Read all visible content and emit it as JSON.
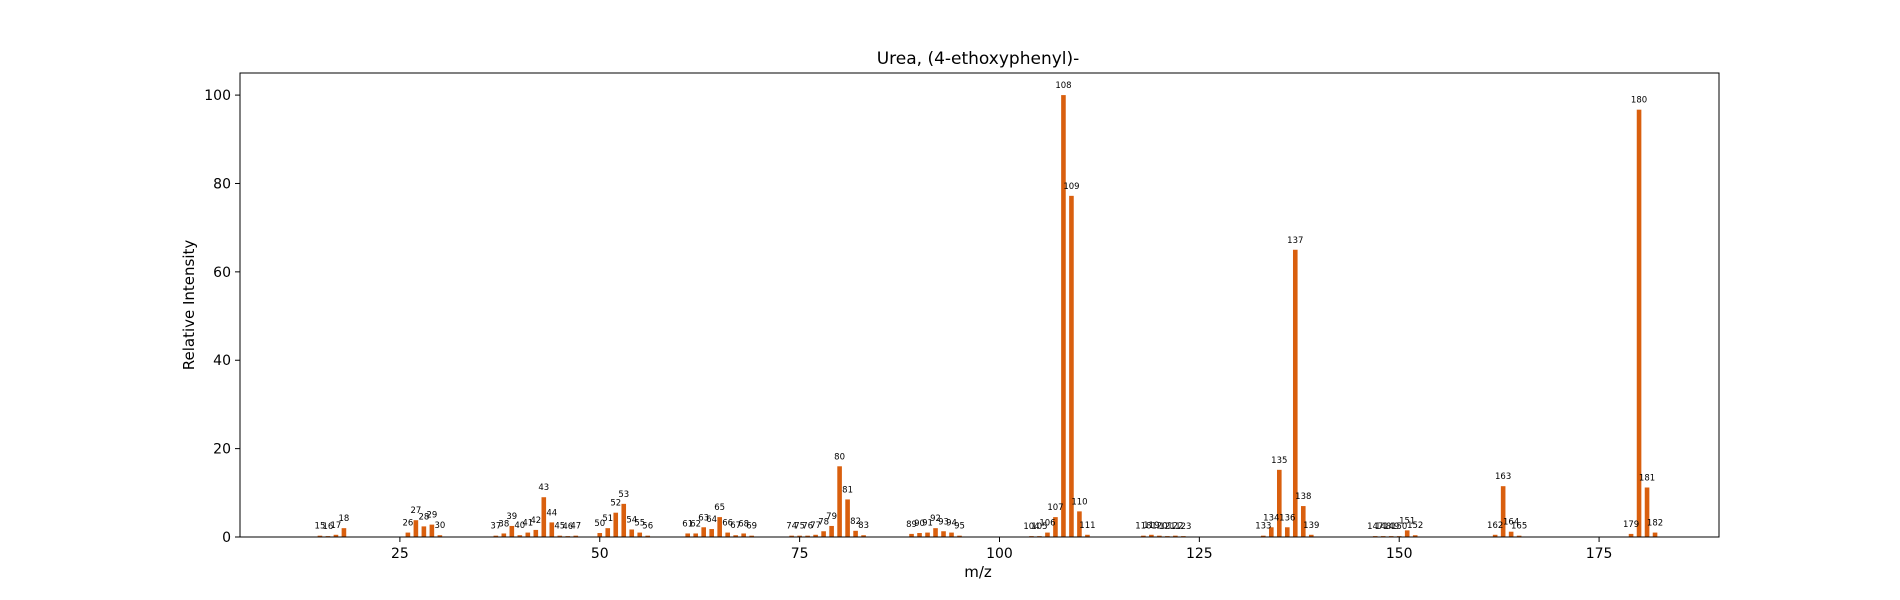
{
  "chart_data": {
    "type": "bar",
    "title": "Urea, (4-ethoxyphenyl)-",
    "xlabel": "m/z",
    "ylabel": "Relative Intensity",
    "xlim": [
      5,
      190
    ],
    "ylim": [
      0,
      105
    ],
    "xticks": [
      25,
      50,
      75,
      100,
      125,
      150,
      175
    ],
    "yticks": [
      0,
      20,
      40,
      60,
      80,
      100
    ],
    "bar_color": "#d95f0e",
    "grid": false,
    "legend": "none",
    "peaks": [
      {
        "mz": 15,
        "intensity": 0.3
      },
      {
        "mz": 16,
        "intensity": 0.2
      },
      {
        "mz": 17,
        "intensity": 0.5
      },
      {
        "mz": 18,
        "intensity": 2.0
      },
      {
        "mz": 26,
        "intensity": 1.0
      },
      {
        "mz": 27,
        "intensity": 3.8
      },
      {
        "mz": 28,
        "intensity": 2.4
      },
      {
        "mz": 29,
        "intensity": 2.8
      },
      {
        "mz": 30,
        "intensity": 0.4
      },
      {
        "mz": 37,
        "intensity": 0.3
      },
      {
        "mz": 38,
        "intensity": 0.8
      },
      {
        "mz": 39,
        "intensity": 2.5
      },
      {
        "mz": 40,
        "intensity": 0.4
      },
      {
        "mz": 41,
        "intensity": 1.0
      },
      {
        "mz": 42,
        "intensity": 1.6
      },
      {
        "mz": 43,
        "intensity": 9.0
      },
      {
        "mz": 44,
        "intensity": 3.3
      },
      {
        "mz": 45,
        "intensity": 0.3
      },
      {
        "mz": 46,
        "intensity": 0.2
      },
      {
        "mz": 47,
        "intensity": 0.3
      },
      {
        "mz": 50,
        "intensity": 0.9
      },
      {
        "mz": 51,
        "intensity": 2.0
      },
      {
        "mz": 52,
        "intensity": 5.5
      },
      {
        "mz": 53,
        "intensity": 7.5
      },
      {
        "mz": 54,
        "intensity": 1.7
      },
      {
        "mz": 55,
        "intensity": 1.0
      },
      {
        "mz": 56,
        "intensity": 0.3
      },
      {
        "mz": 61,
        "intensity": 0.8
      },
      {
        "mz": 62,
        "intensity": 0.8
      },
      {
        "mz": 63,
        "intensity": 2.2
      },
      {
        "mz": 64,
        "intensity": 1.8
      },
      {
        "mz": 65,
        "intensity": 4.5
      },
      {
        "mz": 66,
        "intensity": 1.0
      },
      {
        "mz": 67,
        "intensity": 0.4
      },
      {
        "mz": 68,
        "intensity": 0.8
      },
      {
        "mz": 69,
        "intensity": 0.3
      },
      {
        "mz": 74,
        "intensity": 0.3
      },
      {
        "mz": 75,
        "intensity": 0.3
      },
      {
        "mz": 76,
        "intensity": 0.3
      },
      {
        "mz": 77,
        "intensity": 0.5
      },
      {
        "mz": 78,
        "intensity": 1.3
      },
      {
        "mz": 79,
        "intensity": 2.5
      },
      {
        "mz": 80,
        "intensity": 16.0
      },
      {
        "mz": 81,
        "intensity": 8.5
      },
      {
        "mz": 82,
        "intensity": 1.4
      },
      {
        "mz": 83,
        "intensity": 0.4
      },
      {
        "mz": 89,
        "intensity": 0.7
      },
      {
        "mz": 90,
        "intensity": 0.9
      },
      {
        "mz": 91,
        "intensity": 1.0
      },
      {
        "mz": 92,
        "intensity": 2.0
      },
      {
        "mz": 93,
        "intensity": 1.3
      },
      {
        "mz": 94,
        "intensity": 1.0
      },
      {
        "mz": 95,
        "intensity": 0.3
      },
      {
        "mz": 104,
        "intensity": 0.2
      },
      {
        "mz": 105,
        "intensity": 0.2
      },
      {
        "mz": 106,
        "intensity": 1.0
      },
      {
        "mz": 107,
        "intensity": 4.5
      },
      {
        "mz": 108,
        "intensity": 100.0
      },
      {
        "mz": 109,
        "intensity": 77.2
      },
      {
        "mz": 110,
        "intensity": 5.8
      },
      {
        "mz": 111,
        "intensity": 0.5
      },
      {
        "mz": 118,
        "intensity": 0.3
      },
      {
        "mz": 119,
        "intensity": 0.5
      },
      {
        "mz": 120,
        "intensity": 0.3
      },
      {
        "mz": 121,
        "intensity": 0.2
      },
      {
        "mz": 122,
        "intensity": 0.3
      },
      {
        "mz": 123,
        "intensity": 0.2
      },
      {
        "mz": 133,
        "intensity": 0.3
      },
      {
        "mz": 134,
        "intensity": 2.2
      },
      {
        "mz": 135,
        "intensity": 15.2
      },
      {
        "mz": 136,
        "intensity": 2.2
      },
      {
        "mz": 137,
        "intensity": 65.0
      },
      {
        "mz": 138,
        "intensity": 7.0
      },
      {
        "mz": 139,
        "intensity": 0.5
      },
      {
        "mz": 147,
        "intensity": 0.2
      },
      {
        "mz": 148,
        "intensity": 0.2
      },
      {
        "mz": 149,
        "intensity": 0.2
      },
      {
        "mz": 150,
        "intensity": 0.2
      },
      {
        "mz": 151,
        "intensity": 1.5
      },
      {
        "mz": 152,
        "intensity": 0.4
      },
      {
        "mz": 162,
        "intensity": 0.5
      },
      {
        "mz": 163,
        "intensity": 11.5
      },
      {
        "mz": 164,
        "intensity": 1.2
      },
      {
        "mz": 165,
        "intensity": 0.3
      },
      {
        "mz": 179,
        "intensity": 0.7
      },
      {
        "mz": 180,
        "intensity": 96.7
      },
      {
        "mz": 181,
        "intensity": 11.2
      },
      {
        "mz": 182,
        "intensity": 1.0
      }
    ]
  }
}
